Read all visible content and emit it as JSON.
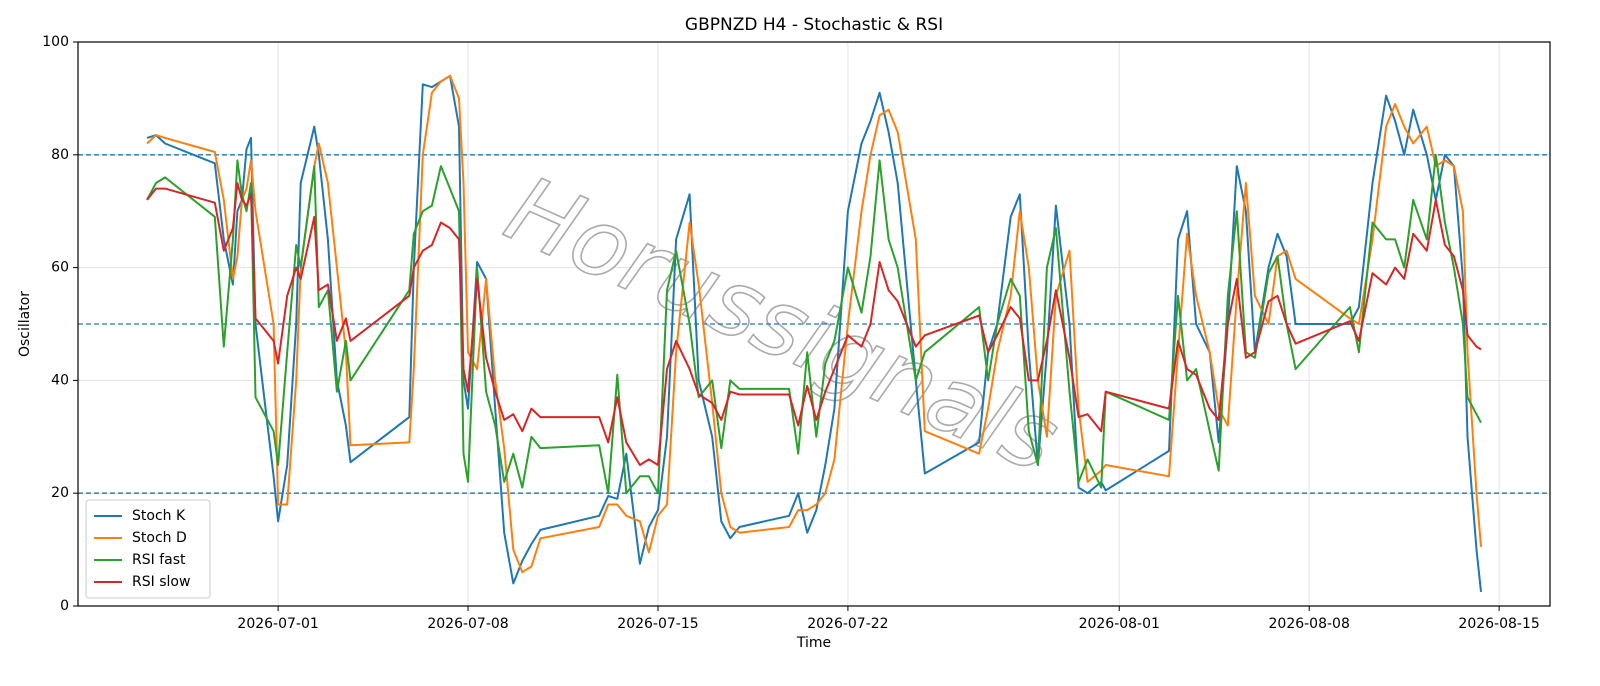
{
  "chart_data": {
    "type": "line",
    "title": "GBPNZD H4 - Stochastic & RSI",
    "xlabel": "Time",
    "ylabel": "Oscillator",
    "watermark": "Horussignals",
    "x": [
      "2026-06-26 04:00",
      "2026-06-26 12:00",
      "2026-06-26 20:00",
      "2026-06-28 16:00",
      "2026-06-29 00:00",
      "2026-06-29 08:00",
      "2026-06-29 12:00",
      "2026-06-29 16:00",
      "2026-06-29 20:00",
      "2026-06-30 00:00",
      "2026-06-30 04:00",
      "2026-06-30 20:00",
      "2026-07-01 00:00",
      "2026-07-01 08:00",
      "2026-07-01 16:00",
      "2026-07-01 20:00",
      "2026-07-02 08:00",
      "2026-07-02 12:00",
      "2026-07-02 20:00",
      "2026-07-03 04:00",
      "2026-07-03 12:00",
      "2026-07-03 16:00",
      "2026-07-05 20:00",
      "2026-07-06 00:00",
      "2026-07-06 08:00",
      "2026-07-06 16:00",
      "2026-07-07 00:00",
      "2026-07-07 08:00",
      "2026-07-07 16:00",
      "2026-07-07 20:00",
      "2026-07-08 00:00",
      "2026-07-08 08:00",
      "2026-07-08 16:00",
      "2026-07-09 00:00",
      "2026-07-09 08:00",
      "2026-07-09 16:00",
      "2026-07-10 00:00",
      "2026-07-10 08:00",
      "2026-07-10 16:00",
      "2026-07-12 20:00",
      "2026-07-13 04:00",
      "2026-07-13 12:00",
      "2026-07-13 20:00",
      "2026-07-14 08:00",
      "2026-07-14 16:00",
      "2026-07-15 00:00",
      "2026-07-15 08:00",
      "2026-07-15 16:00",
      "2026-07-16 04:00",
      "2026-07-16 12:00",
      "2026-07-17 00:00",
      "2026-07-17 08:00",
      "2026-07-17 16:00",
      "2026-07-18 00:00",
      "2026-07-19 20:00",
      "2026-07-20 04:00",
      "2026-07-20 12:00",
      "2026-07-20 20:00",
      "2026-07-21 04:00",
      "2026-07-21 12:00",
      "2026-07-22 00:00",
      "2026-07-22 12:00",
      "2026-07-22 20:00",
      "2026-07-23 04:00",
      "2026-07-23 12:00",
      "2026-07-23 20:00",
      "2026-07-24 12:00",
      "2026-07-24 20:00",
      "2026-07-26 20:00",
      "2026-07-27 04:00",
      "2026-07-27 12:00",
      "2026-07-28 00:00",
      "2026-07-28 08:00",
      "2026-07-28 16:00",
      "2026-07-29 00:00",
      "2026-07-29 08:00",
      "2026-07-29 16:00",
      "2026-07-30 04:00",
      "2026-07-30 12:00",
      "2026-07-30 20:00",
      "2026-07-31 08:00",
      "2026-07-31 12:00",
      "2026-08-02 20:00",
      "2026-08-03 04:00",
      "2026-08-03 12:00",
      "2026-08-03 20:00",
      "2026-08-04 08:00",
      "2026-08-04 16:00",
      "2026-08-05 00:00",
      "2026-08-05 08:00",
      "2026-08-05 16:00",
      "2026-08-06 00:00",
      "2026-08-06 12:00",
      "2026-08-06 20:00",
      "2026-08-07 04:00",
      "2026-08-07 12:00",
      "2026-08-09 12:00",
      "2026-08-09 20:00",
      "2026-08-10 08:00",
      "2026-08-10 20:00",
      "2026-08-11 04:00",
      "2026-08-11 12:00",
      "2026-08-11 20:00",
      "2026-08-12 08:00",
      "2026-08-12 16:00",
      "2026-08-13 00:00",
      "2026-08-13 08:00",
      "2026-08-13 16:00",
      "2026-08-13 20:00",
      "2026-08-14 04:00",
      "2026-08-14 08:00"
    ],
    "series": [
      {
        "name": "Stoch K",
        "color": "#1f77b4",
        "values": [
          83,
          83.5,
          82,
          78.5,
          65,
          57,
          70,
          72,
          81,
          83,
          50,
          23,
          15,
          25,
          50,
          75,
          85,
          80,
          65,
          40,
          32,
          25.5,
          33.5,
          60,
          92.5,
          92,
          93,
          94,
          85,
          40,
          35,
          61,
          58,
          35,
          13,
          4,
          8,
          11,
          13.5,
          16,
          19.5,
          19,
          27,
          7.5,
          14,
          17,
          30,
          65,
          73,
          40,
          30,
          15,
          12,
          14,
          16,
          20,
          13,
          17,
          25,
          35,
          70,
          82,
          86,
          91,
          84,
          75,
          40,
          23.5,
          29,
          45,
          50,
          69,
          73,
          45,
          25,
          45,
          71,
          50,
          21,
          20,
          22,
          20.5,
          27.5,
          65,
          70,
          50,
          45,
          29,
          50,
          78,
          70,
          45,
          60,
          66,
          62,
          50,
          50,
          53,
          75,
          90.5,
          86,
          80,
          88,
          80,
          72,
          80,
          78,
          58,
          30,
          10,
          2.5
        ]
      },
      {
        "name": "Stoch D",
        "color": "#ff7f0e",
        "values": [
          82,
          83.5,
          83,
          80.5,
          72,
          58,
          62,
          72,
          74,
          79,
          70,
          50,
          18,
          18,
          40,
          60,
          78,
          82,
          75,
          60,
          45,
          28.5,
          29,
          42,
          80,
          91,
          93,
          94,
          90,
          75,
          45,
          42,
          58,
          40,
          28,
          10,
          6,
          7,
          12,
          14,
          18,
          18,
          16,
          15,
          9.5,
          16,
          18,
          45,
          68,
          57,
          36,
          20,
          14,
          13,
          14,
          17,
          17,
          18,
          20,
          26,
          50,
          70,
          80,
          87,
          88,
          84,
          65,
          31,
          27,
          35,
          45,
          55,
          70,
          60,
          40,
          30,
          55,
          63,
          35,
          22,
          24,
          25,
          23,
          45,
          66,
          55,
          45,
          35,
          32,
          55,
          75,
          55,
          50,
          62,
          63,
          58,
          51,
          50,
          65,
          85,
          89,
          85,
          82,
          85,
          78,
          79,
          78,
          70,
          45,
          20,
          10.5
        ]
      },
      {
        "name": "RSI fast",
        "color": "#2ca02c",
        "values": [
          72,
          75,
          76,
          69,
          46,
          65,
          79,
          73,
          70,
          75,
          37,
          31,
          25,
          45,
          64,
          60,
          78,
          53,
          56,
          38,
          47,
          40,
          56,
          66,
          70,
          71,
          78,
          74,
          70,
          27,
          22,
          60,
          38,
          32,
          22,
          27,
          21,
          30,
          28,
          28.5,
          20,
          41,
          20,
          23,
          23,
          20,
          56,
          63,
          50,
          37,
          40,
          28,
          40,
          38.5,
          38.5,
          27,
          45,
          30,
          43,
          47,
          60,
          52,
          62,
          79,
          65,
          60,
          40,
          45,
          53,
          40,
          50,
          58,
          55,
          31,
          25,
          60,
          67,
          38,
          22,
          26,
          21,
          38,
          33,
          55,
          40,
          42,
          31,
          24,
          55,
          70,
          45,
          44,
          59,
          62,
          50,
          42,
          53,
          45,
          68,
          65,
          65,
          60,
          72,
          65,
          80,
          68,
          60,
          50,
          37,
          34,
          32.5
        ]
      },
      {
        "name": "RSI slow",
        "color": "#d62728",
        "values": [
          72,
          74,
          74,
          71.5,
          63,
          67,
          75,
          72,
          71,
          73,
          51,
          47,
          43,
          55,
          60,
          58,
          69,
          56,
          57,
          47,
          51,
          47,
          55,
          60,
          63,
          64,
          68,
          67,
          65,
          42,
          38,
          58,
          44,
          38,
          33,
          34,
          31,
          35,
          33.5,
          33.5,
          29,
          37,
          29,
          25,
          26,
          25,
          42,
          47,
          42,
          37.5,
          36,
          33,
          38,
          37.5,
          37.5,
          32,
          39,
          33,
          38,
          42,
          48,
          46,
          50,
          61,
          56,
          54,
          46,
          48,
          51.5,
          45,
          48,
          53,
          51,
          40,
          40,
          47,
          56,
          44,
          33.5,
          34,
          31,
          38,
          35,
          47,
          42,
          41,
          35,
          33,
          50,
          58,
          44,
          45,
          54,
          55,
          50,
          46.5,
          50.5,
          47,
          59,
          57,
          60,
          58,
          66,
          63,
          72,
          64,
          62,
          56,
          48,
          46,
          45.5
        ]
      }
    ],
    "xlim": [
      "2026-06-23 15:00",
      "2026-08-16 21:00"
    ],
    "xticks": [
      "2026-07-01",
      "2026-07-08",
      "2026-07-15",
      "2026-07-22",
      "2026-08-01",
      "2026-08-08",
      "2026-08-15"
    ],
    "ylim": [
      0,
      100
    ],
    "yticks": [
      0,
      20,
      40,
      60,
      80,
      100
    ],
    "hlines": [
      20,
      50,
      80
    ],
    "hline_color": "#1f77b4",
    "grid": true,
    "legend": "lower left"
  }
}
